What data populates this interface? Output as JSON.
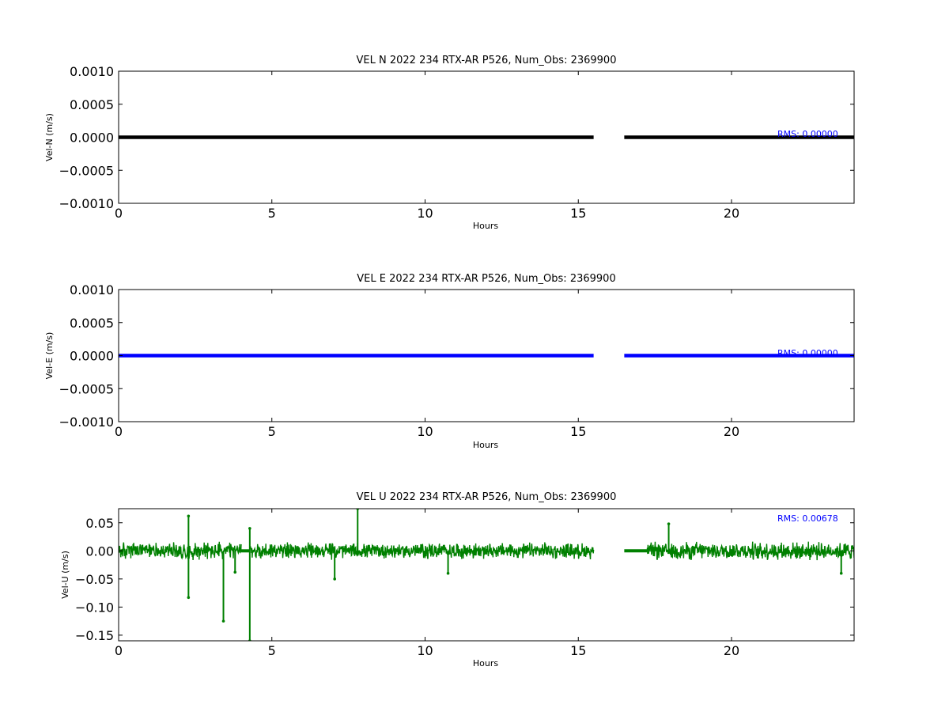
{
  "figure": {
    "background": "#ffffff"
  },
  "chart_data": [
    {
      "type": "line",
      "title": "VEL N 2022 234 RTX-AR  P526, Num_Obs: 2369900",
      "xlabel": "Hours",
      "ylabel": "Vel-N (m/s)",
      "xlim": [
        0,
        24
      ],
      "ylim": [
        -0.001,
        0.001
      ],
      "xticks": [
        0,
        5,
        10,
        15,
        20
      ],
      "xtick_labels": [
        "0",
        "5",
        "10",
        "15",
        "20"
      ],
      "yticks": [
        0.001,
        0.0005,
        0.0,
        -0.0005,
        -0.001
      ],
      "ytick_labels": [
        "0.0010",
        "0.0005",
        "0.0000",
        "−0.0005",
        "−0.0010"
      ],
      "annotation": "RMS:  0.00000",
      "annotation_color": "#0000ff",
      "series": [
        {
          "color": "#000000",
          "segments": [
            {
              "x": [
                0.0,
                15.5
              ],
              "y": [
                0.0,
                0.0
              ]
            },
            {
              "x": [
                16.5,
                24.0
              ],
              "y": [
                0.0,
                0.0
              ]
            }
          ]
        }
      ],
      "grid": false
    },
    {
      "type": "line",
      "title": "VEL E 2022 234 RTX-AR  P526, Num_Obs: 2369900",
      "xlabel": "Hours",
      "ylabel": "Vel-E (m/s)",
      "xlim": [
        0,
        24
      ],
      "ylim": [
        -0.001,
        0.001
      ],
      "xticks": [
        0,
        5,
        10,
        15,
        20
      ],
      "xtick_labels": [
        "0",
        "5",
        "10",
        "15",
        "20"
      ],
      "yticks": [
        0.001,
        0.0005,
        0.0,
        -0.0005,
        -0.001
      ],
      "ytick_labels": [
        "0.0010",
        "0.0005",
        "0.0000",
        "−0.0005",
        "−0.0010"
      ],
      "annotation": "RMS:  0.00000",
      "annotation_color": "#0000ff",
      "series": [
        {
          "color": "#0000ff",
          "segments": [
            {
              "x": [
                0.0,
                15.5
              ],
              "y": [
                0.0,
                0.0
              ]
            },
            {
              "x": [
                16.5,
                24.0
              ],
              "y": [
                0.0,
                0.0
              ]
            }
          ]
        }
      ],
      "grid": false
    },
    {
      "type": "line",
      "title": "VEL U 2022 234 RTX-AR  P526, Num_Obs: 2369900",
      "xlabel": "Hours",
      "ylabel": "Vel-U (m/s)",
      "xlim": [
        0,
        24
      ],
      "ylim": [
        -0.16,
        0.075
      ],
      "xticks": [
        0,
        5,
        10,
        15,
        20
      ],
      "xtick_labels": [
        "0",
        "5",
        "10",
        "15",
        "20"
      ],
      "yticks": [
        0.05,
        0.0,
        -0.05,
        -0.1,
        -0.15
      ],
      "ytick_labels": [
        "0.05",
        "0.00",
        "−0.05",
        "−0.10",
        "−0.15"
      ],
      "annotation": "RMS:  0.00678",
      "annotation_color": "#0000ff",
      "series": [
        {
          "color": "#008000",
          "noise_bands": [
            {
              "x": [
                0.0,
                4.0
              ],
              "amplitude": 0.018
            },
            {
              "x": [
                4.3,
                15.5
              ],
              "amplitude": 0.016
            },
            {
              "x": [
                17.25,
                24.0
              ],
              "amplitude": 0.018
            }
          ],
          "flat_segments": [
            {
              "x": [
                4.0,
                4.3
              ],
              "y": 0.0
            },
            {
              "x": [
                16.5,
                17.25
              ],
              "y": 0.0
            }
          ],
          "spikes": [
            {
              "x": 2.28,
              "y": 0.062
            },
            {
              "x": 2.28,
              "y": -0.083
            },
            {
              "x": 3.42,
              "y": -0.125
            },
            {
              "x": 3.8,
              "y": -0.038
            },
            {
              "x": 4.28,
              "y": -0.16
            },
            {
              "x": 4.28,
              "y": 0.04
            },
            {
              "x": 7.05,
              "y": -0.05
            },
            {
              "x": 7.8,
              "y": 0.075
            },
            {
              "x": 10.75,
              "y": -0.04
            },
            {
              "x": 17.95,
              "y": 0.048
            },
            {
              "x": 23.58,
              "y": -0.04
            }
          ]
        }
      ],
      "grid": false
    }
  ]
}
